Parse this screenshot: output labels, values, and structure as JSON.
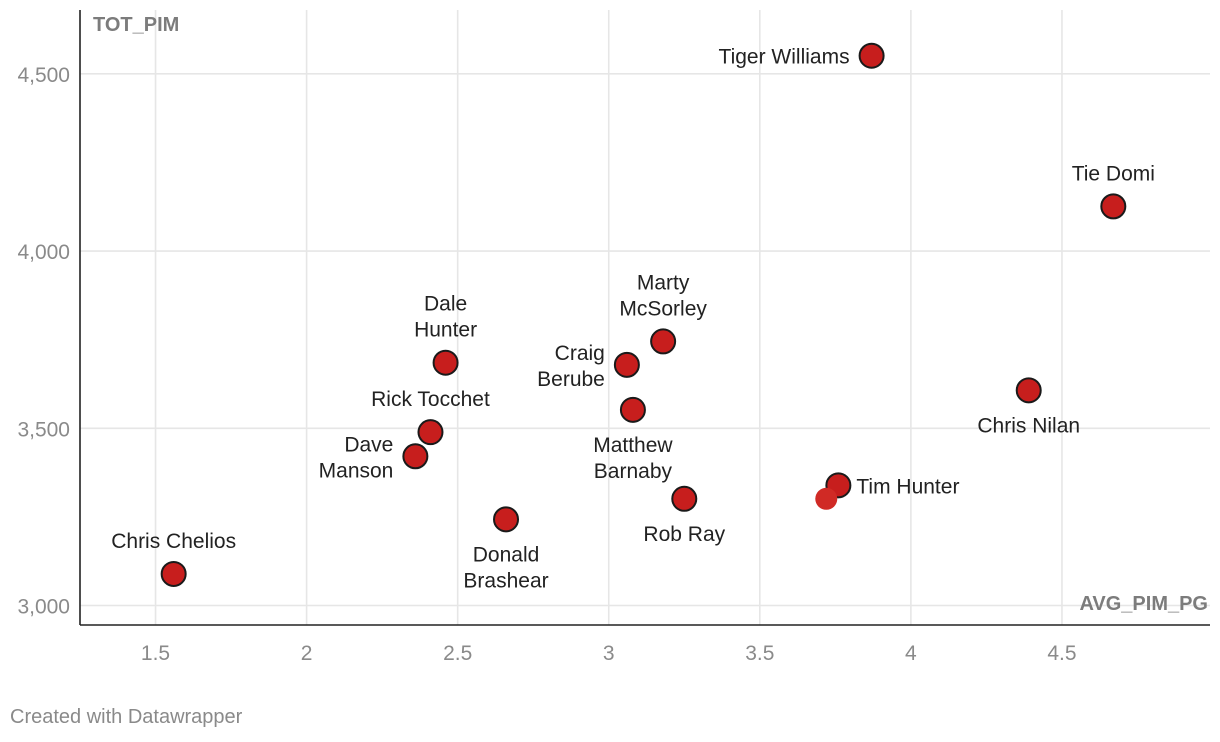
{
  "chart_data": {
    "type": "scatter",
    "xlabel": "AVG_PIM_PG",
    "ylabel": "TOT_PIM",
    "xlim": [
      1.25,
      4.99
    ],
    "ylim": [
      2945,
      4680
    ],
    "x_ticks": [
      1.5,
      2,
      2.5,
      3,
      3.5,
      4,
      4.5
    ],
    "x_tick_labels": [
      "1.5",
      "2",
      "2.5",
      "3",
      "3.5",
      "4",
      "4.5"
    ],
    "y_ticks": [
      3000,
      3500,
      4000,
      4500
    ],
    "y_tick_labels": [
      "3,000",
      "3,500",
      "4,000",
      "4,500"
    ],
    "grid": true,
    "point_color": "#c71e1d",
    "points": [
      {
        "label": [
          "Tiger Williams"
        ],
        "x": 3.87,
        "y": 4551,
        "label_pos": "left",
        "outlined": true
      },
      {
        "label": [
          "Tie Domi"
        ],
        "x": 4.67,
        "y": 4126,
        "label_pos": "above",
        "outlined": true
      },
      {
        "label": [
          "Marty",
          "McSorley"
        ],
        "x": 3.18,
        "y": 3745,
        "label_pos": "above",
        "outlined": true
      },
      {
        "label": [
          "Dale",
          "Hunter"
        ],
        "x": 2.46,
        "y": 3685,
        "label_pos": "above",
        "outlined": true
      },
      {
        "label": [
          "Craig",
          "Berube"
        ],
        "x": 3.06,
        "y": 3679,
        "label_pos": "left",
        "outlined": true
      },
      {
        "label": [
          "Chris Nilan"
        ],
        "x": 4.39,
        "y": 3607,
        "label_pos": "below",
        "outlined": true
      },
      {
        "label": [
          "Matthew",
          "Barnaby"
        ],
        "x": 3.08,
        "y": 3552,
        "label_pos": "below",
        "outlined": true
      },
      {
        "label": [
          "Rick Tocchet"
        ],
        "x": 2.41,
        "y": 3489,
        "label_pos": "above",
        "outlined": true
      },
      {
        "label": [
          "Dave",
          "Manson"
        ],
        "x": 2.36,
        "y": 3421,
        "label_pos": "left",
        "outlined": true
      },
      {
        "label": [
          "Tim Hunter"
        ],
        "x": 3.76,
        "y": 3339,
        "label_pos": "right",
        "outlined": true
      },
      {
        "label": [],
        "x": 3.72,
        "y": 3301,
        "label_pos": "none",
        "outlined": false
      },
      {
        "label": [
          "Rob Ray"
        ],
        "x": 3.25,
        "y": 3301,
        "label_pos": "below",
        "outlined": true
      },
      {
        "label": [
          "Donald",
          "Brashear"
        ],
        "x": 2.66,
        "y": 3243,
        "label_pos": "below",
        "outlined": true
      },
      {
        "label": [
          "Chris Chelios"
        ],
        "x": 1.56,
        "y": 3089,
        "label_pos": "above",
        "outlined": true
      }
    ]
  },
  "footer": {
    "credit": "Created with Datawrapper"
  }
}
